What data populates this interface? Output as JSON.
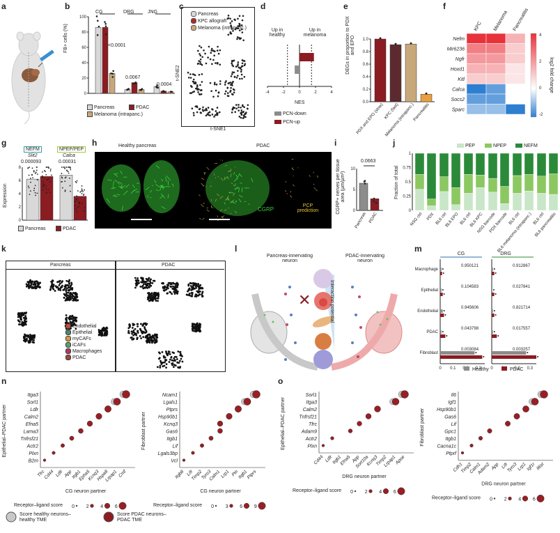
{
  "colors": {
    "pancreas": "#d8d8d8",
    "pdac": "#8b1c22",
    "melanoma": "#c8a87a",
    "kpc": "#b02a2a",
    "pep": "#c9e6c8",
    "npep": "#8cc862",
    "nefm": "#2b8a3a",
    "cgrp": "#3bd13b",
    "pcp": "#e8c830",
    "healthy": "#8c8c8c",
    "heat_pos": "#e8323a",
    "heat_neg": "#2f7fd0"
  },
  "panels": [
    "a",
    "b",
    "c",
    "d",
    "e",
    "f",
    "g",
    "h",
    "i",
    "j",
    "k",
    "l",
    "m",
    "n",
    "o"
  ],
  "b": {
    "ylabel": "FB+ cells (%)",
    "groups": [
      "CG",
      "DRG",
      "JNG"
    ],
    "pvals": [
      "<0.0001",
      "0.0067",
      "0.0004"
    ],
    "legend": [
      "Pancreas",
      "PDAC",
      "Melanoma (intrapanc.)"
    ],
    "chart_data": {
      "type": "bar",
      "categories": [
        "CG",
        "DRG",
        "JNG"
      ],
      "series": [
        {
          "name": "Pancreas",
          "values": [
            86,
            5,
            9
          ]
        },
        {
          "name": "PDAC",
          "values": [
            86,
            14,
            3
          ]
        },
        {
          "name": "Melanoma (intrapanc.)",
          "values": [
            26,
            5,
            2
          ]
        }
      ],
      "ylim": [
        0,
        100
      ],
      "yticks": [
        0,
        20,
        40,
        60,
        80,
        100
      ]
    }
  },
  "c": {
    "xlabel": "t-SNE1",
    "ylabel": "t-SNE2",
    "legend": [
      "Pancreas",
      "KPC allograft",
      "Melanoma (intrapanc.)"
    ]
  },
  "d": {
    "left": "Up in healthy",
    "right": "Up in melanoma",
    "xlabel": "NES",
    "xticks": [
      "-4",
      "-2",
      "0",
      "2",
      "4"
    ],
    "legend": [
      "PCN-down",
      "PCN-up"
    ],
    "chart_data": {
      "type": "bar",
      "categories": [
        "PCN-down",
        "PCN-up"
      ],
      "values": [
        -0.6,
        1.8
      ],
      "xlim": [
        -4,
        4
      ]
    }
  },
  "e": {
    "ylabel": "DEGs in proportion to PDX and EPO",
    "chart_data": {
      "type": "bar",
      "categories": [
        "PDX and EPO (slow)",
        "KPC (fast)",
        "Melanoma (intrapanc.)",
        "Pancreatitis"
      ],
      "values": [
        1.0,
        0.91,
        0.92,
        0.12
      ],
      "ylim": [
        0,
        1.0
      ],
      "yticks": [
        0,
        0.2,
        0.4,
        0.6,
        0.8,
        1.0
      ]
    }
  },
  "f": {
    "cols": [
      "KPC",
      "Melanoma",
      "Pancreatitis"
    ],
    "rows": [
      "Nefm",
      "Mir6236",
      "Ngfr",
      "Hoxd1",
      "Kitl",
      "Calca",
      "Socs2",
      "Sparc"
    ],
    "cbar_label": "log2 fold change",
    "cbar_ticks": [
      "4",
      "2",
      "0",
      "-2"
    ],
    "chart_data": {
      "type": "heatmap",
      "values": [
        [
          4,
          4,
          1.5
        ],
        [
          2.5,
          2.5,
          1
        ],
        [
          2,
          2,
          1
        ],
        [
          1.5,
          1.5,
          0.5
        ],
        [
          1,
          1,
          0.5
        ],
        [
          -2,
          -1.5,
          0
        ],
        [
          -1.5,
          -1.5,
          0
        ],
        [
          -1,
          -1,
          -2
        ]
      ]
    }
  },
  "g": {
    "tags": [
      "NEFM",
      "NPEP/PEP"
    ],
    "genes": [
      "Slit2",
      "Calca"
    ],
    "pvals": [
      "0.000093",
      "0.00031"
    ],
    "ylabel": "Expression",
    "legend": [
      "Pancreas",
      "PDAC"
    ],
    "yticks": [
      "0",
      "2",
      "4",
      "6",
      "8"
    ],
    "chart_data": {
      "type": "bar",
      "categories": [
        "Slit2",
        "Calca"
      ],
      "series": [
        {
          "name": "Pancreas",
          "values": [
            6.2,
            6.8
          ]
        },
        {
          "name": "PDAC",
          "values": [
            6.6,
            3.6
          ]
        }
      ],
      "ylim": [
        0,
        8
      ]
    }
  },
  "h": {
    "titles": [
      "Healthy pancreas",
      "PDAC"
    ],
    "labels": [
      "CGRP",
      "PCP prediction"
    ]
  },
  "i": {
    "pval": "0.0663",
    "ylabel": "CGRP+ nerves per tissue area (µm/µm²)",
    "chart_data": {
      "type": "bar",
      "categories": [
        "Pancreas",
        "PDAC"
      ],
      "values": [
        6.5,
        2.8
      ],
      "ylim": [
        0,
        10
      ],
      "yticks": [
        0,
        5,
        10
      ]
    }
  },
  "j": {
    "legend": [
      "PEP",
      "NPEP",
      "NEFM"
    ],
    "ylabel": "Fraction of total",
    "chart_data": {
      "type": "bar",
      "categories": [
        "NSG ctrl",
        "PDX",
        "BL6 ctrl",
        "BL6 EPO",
        "BL6 ctrl",
        "BL6 KPC",
        "NSG barcode",
        "PDX barcode",
        "BL6 ctrl",
        "BL6 melanoma (intrapanc.)",
        "BL6 ctrl",
        "BL6 pancreatitis"
      ],
      "series": [
        {
          "name": "PEP",
          "values": [
            0.37,
            0.08,
            0.33,
            0.1,
            0.3,
            0.4,
            0.32,
            0.12,
            0.3,
            0.34,
            0.3,
            0.28
          ]
        },
        {
          "name": "NPEP",
          "values": [
            0.26,
            0.12,
            0.26,
            0.3,
            0.33,
            0.22,
            0.24,
            0.3,
            0.31,
            0.29,
            0.3,
            0.36
          ]
        },
        {
          "name": "NEFM",
          "values": [
            0.37,
            0.8,
            0.41,
            0.6,
            0.37,
            0.38,
            0.44,
            0.58,
            0.39,
            0.37,
            0.4,
            0.36
          ]
        }
      ],
      "ylim": [
        0,
        1
      ],
      "yticks": [
        0,
        0.25,
        0.5,
        0.75,
        1.0
      ]
    }
  },
  "k": {
    "titles": [
      "Pancreas",
      "PDAC"
    ],
    "legend": [
      "Endothelial",
      "Epithelial",
      "myCAFs",
      "iCAFs",
      "Macrophages",
      "PDAC"
    ]
  },
  "l": {
    "titles": [
      "Pancreas-innervating neuron",
      "PDAC-innervating neuron"
    ],
    "side": "Interaction potential"
  },
  "m": {
    "groups": [
      "CG",
      "DRG"
    ],
    "rows": [
      "Macrophage",
      "Epithelial",
      "Endothelial",
      "PDAC",
      "Fibroblast"
    ],
    "cg_p": [
      "0.950121",
      "0.104583",
      "0.945606",
      "0.043798",
      "0.003084"
    ],
    "drg_p": [
      "0.912867",
      "0.027841",
      "0.821714",
      "0.017557",
      "0.003257"
    ],
    "legend": [
      "Healthy",
      "PDAC"
    ],
    "xticks": [
      "0",
      "0.1",
      "0.2",
      "0.3"
    ],
    "chart_data": {
      "type": "bar",
      "categories": [
        "Macrophage",
        "Epithelial",
        "Endothelial",
        "PDAC",
        "Fibroblast"
      ],
      "series": [
        {
          "name": "CG Healthy",
          "values": [
            0.01,
            0.01,
            0.02,
            0.01,
            0.27
          ]
        },
        {
          "name": "CG PDAC",
          "values": [
            0.015,
            0.02,
            0.03,
            0.04,
            0.33
          ]
        },
        {
          "name": "DRG Healthy",
          "values": [
            0.01,
            0.005,
            0.01,
            0.01,
            0.27
          ]
        },
        {
          "name": "DRG PDAC",
          "values": [
            0.02,
            0.02,
            0.02,
            0.04,
            0.35
          ]
        }
      ],
      "xlim": [
        0,
        0.35
      ]
    }
  },
  "n": {
    "left": {
      "ylabel": "Epithelial–PDAC partner",
      "xlabel": "CG neuron partner",
      "yrows": [
        "Itga3",
        "Sorl1",
        "Ldlr",
        "Calm2",
        "Efna5",
        "Lama3",
        "Tnfrsf21",
        "Actr2",
        "Plxn",
        "B2m"
      ],
      "xcols": [
        "Tfrc",
        "Cd44",
        "Ldlr",
        "App",
        "Itgb1",
        "Epha5",
        "Kcnq3",
        "Hspa8",
        "Lrpap1",
        "Cntf"
      ],
      "legend_title": "Receptor–ligand score",
      "legend_ticks": [
        "0",
        "2",
        "4",
        "6"
      ]
    },
    "right": {
      "ylabel": "Fibroblast partner",
      "xlabel": "CG neuron partner",
      "yrows": [
        "Ncam1",
        "Lgals1",
        "Ptprs",
        "Hsp90b1",
        "Kcnq3",
        "Gas6",
        "Itgb1",
        "Lif",
        "Lgals3bp",
        "Vcl"
      ],
      "xcols": [
        "Itgb8",
        "Lifr",
        "Timp2",
        "Tyro3",
        "Calm1",
        "Lrp1",
        "Ptn",
        "Itgb1",
        "Ptprs"
      ],
      "legend_title": "Receptor–ligand score",
      "legend_ticks": [
        "0",
        "3",
        "6",
        "9"
      ]
    }
  },
  "o": {
    "left": {
      "ylabel": "Epithelial–PDAC partner",
      "xlabel": "DRG neuron partner",
      "yrows": [
        "Sorl1",
        "Itga3",
        "Calm2",
        "Tnfrsf21",
        "Tfrc",
        "Adam9",
        "Actr2",
        "Plxn"
      ],
      "xcols": [
        "Cd44",
        "Ldlr",
        "Itgb1",
        "Efna5",
        "App",
        "Sort10a",
        "Kcnq3",
        "Timp2",
        "Lrpap1",
        "Apoe"
      ],
      "legend_title": "Receptor–ligand score",
      "legend_ticks": [
        "0",
        "2",
        "4",
        "6"
      ]
    },
    "right": {
      "ylabel": "Fibroblast partner",
      "xlabel": "DRG neuron partner",
      "yrows": [
        "Il6",
        "Igf1",
        "Hsp90b1",
        "Gas6",
        "Lif",
        "Gpc1",
        "Itgb1",
        "Cacna1c",
        "Ptprf"
      ],
      "xcols": [
        "Cdh1",
        "Timp2",
        "Calm1",
        "Adam2",
        "App",
        "Lifr",
        "Tyro3",
        "Lrp1",
        "Igf1r",
        "Il6st"
      ],
      "legend_title": "Receptor–ligand score",
      "legend_ticks": [
        "0",
        "2",
        "4",
        "6"
      ]
    }
  },
  "bottom_legend": [
    "Score healthy neurons–healthy TME",
    "Score PDAC neurons–PDAC TME"
  ]
}
